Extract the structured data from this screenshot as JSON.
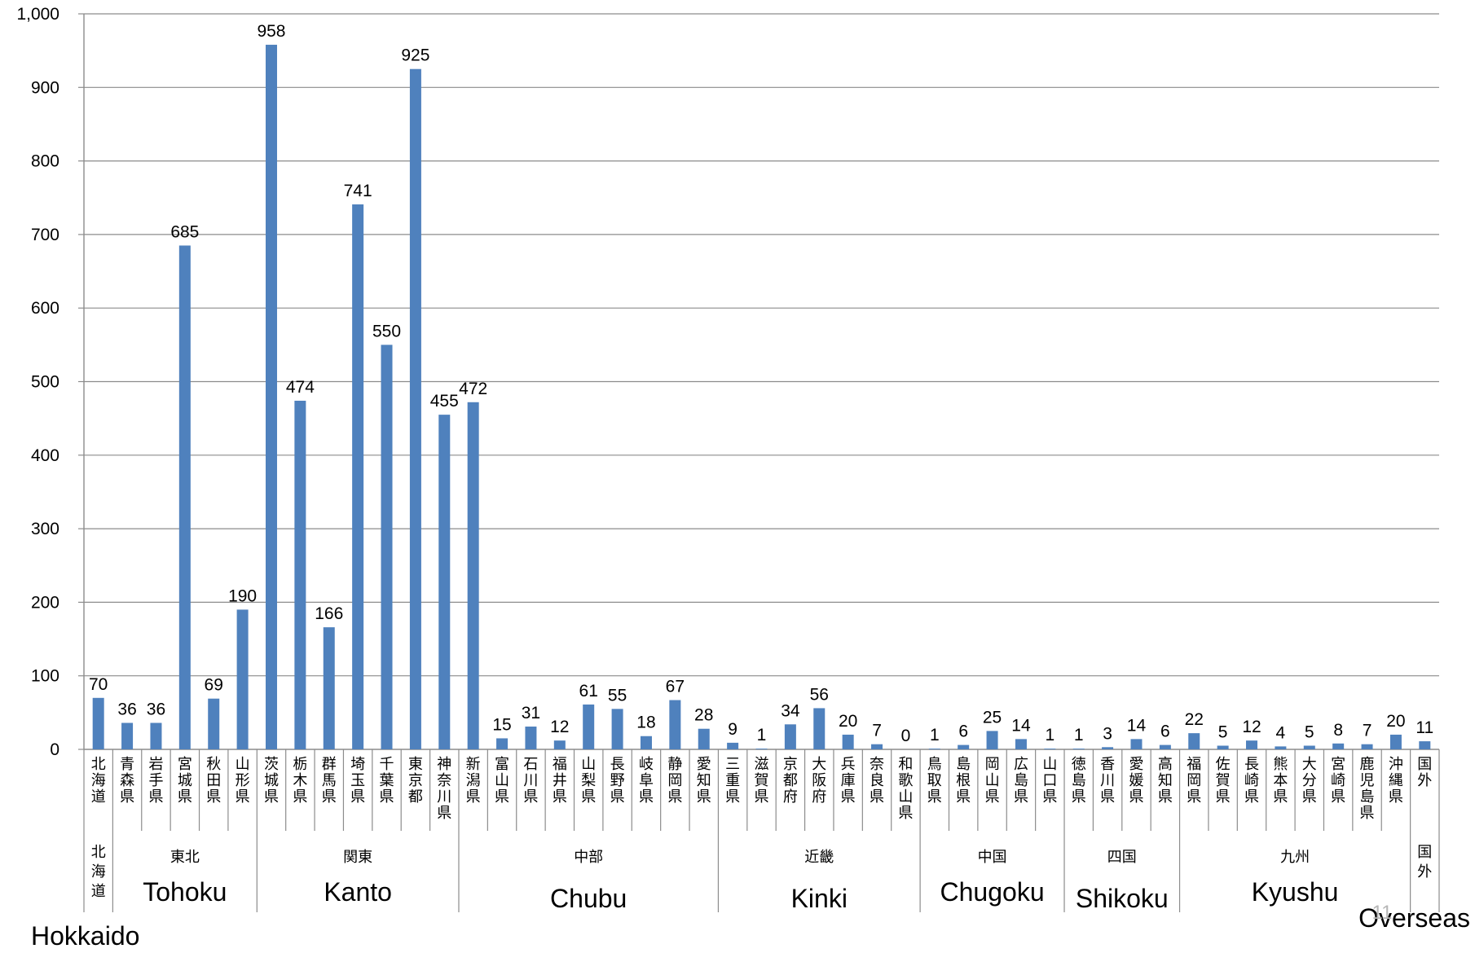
{
  "chart_data": {
    "type": "bar",
    "ylim": [
      0,
      1000
    ],
    "yticks": [
      "0",
      "100",
      "200",
      "300",
      "400",
      "500",
      "600",
      "700",
      "800",
      "900",
      "1,000"
    ],
    "grid": true,
    "bar_color": "#4f81bd",
    "categories": [
      "北海道",
      "青森県",
      "岩手県",
      "宮城県",
      "秋田県",
      "山形県",
      "茨城県",
      "栃木県",
      "群馬県",
      "埼玉県",
      "千葉県",
      "東京都",
      "神奈川県",
      "新潟県",
      "富山県",
      "石川県",
      "福井県",
      "山梨県",
      "長野県",
      "岐阜県",
      "静岡県",
      "愛知県",
      "三重県",
      "滋賀県",
      "京都府",
      "大阪府",
      "兵庫県",
      "奈良県",
      "和歌山県",
      "鳥取県",
      "島根県",
      "岡山県",
      "広島県",
      "山口県",
      "徳島県",
      "香川県",
      "愛媛県",
      "高知県",
      "福岡県",
      "佐賀県",
      "長崎県",
      "熊本県",
      "大分県",
      "宮崎県",
      "鹿児島県",
      "沖縄県",
      "国外"
    ],
    "values": [
      70,
      36,
      36,
      685,
      69,
      190,
      958,
      474,
      166,
      741,
      550,
      925,
      455,
      472,
      15,
      31,
      12,
      61,
      55,
      18,
      67,
      28,
      9,
      1,
      34,
      56,
      20,
      7,
      0,
      1,
      6,
      25,
      14,
      1,
      1,
      3,
      14,
      6,
      22,
      5,
      12,
      4,
      5,
      8,
      7,
      20,
      11
    ],
    "regions": [
      {
        "jp": "北海道",
        "en": "Hokkaido",
        "start": 0,
        "end": 0
      },
      {
        "jp": "東北",
        "en": "Tohoku",
        "start": 1,
        "end": 5
      },
      {
        "jp": "関東",
        "en": "Kanto",
        "start": 6,
        "end": 12
      },
      {
        "jp": "中部",
        "en": "Chubu",
        "start": 13,
        "end": 21
      },
      {
        "jp": "近畿",
        "en": "Kinki",
        "start": 22,
        "end": 28
      },
      {
        "jp": "中国",
        "en": "Chugoku",
        "start": 29,
        "end": 33
      },
      {
        "jp": "四国",
        "en": "Shikoku",
        "start": 34,
        "end": 37
      },
      {
        "jp": "九州",
        "en": "Kyushu",
        "start": 38,
        "end": 45
      },
      {
        "jp": "国外",
        "en": "Overseas",
        "start": 46,
        "end": 46
      }
    ]
  },
  "page_number": "11"
}
